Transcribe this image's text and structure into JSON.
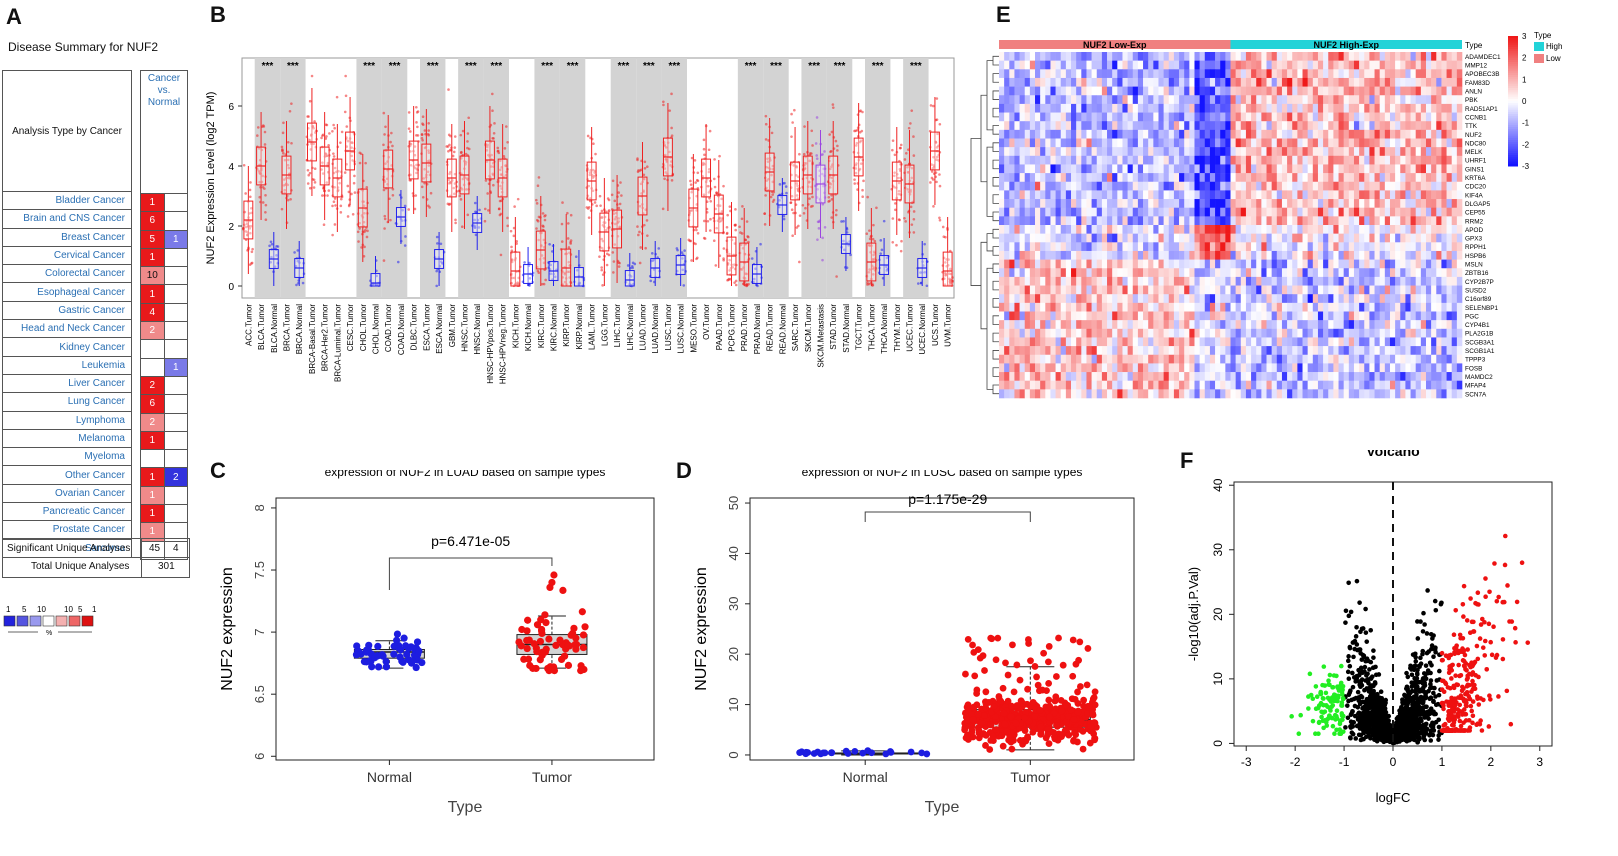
{
  "panels": {
    "A": "A",
    "B": "B",
    "C": "C",
    "D": "D",
    "E": "E",
    "F": "F"
  },
  "oncomine": {
    "title": "Disease Summary for NUF2",
    "col_analysis": "Analysis Type by Cancer",
    "col_cancer_vs_normal": [
      "Cancer",
      "vs.",
      "Normal"
    ],
    "rows": [
      {
        "name": "Bladder Cancer",
        "up": "1",
        "down": ""
      },
      {
        "name": "Brain and CNS Cancer",
        "up": "6",
        "down": ""
      },
      {
        "name": "Breast Cancer",
        "up": "5",
        "down": "1"
      },
      {
        "name": "Cervical Cancer",
        "up": "1",
        "down": ""
      },
      {
        "name": "Colorectal Cancer",
        "up": "10",
        "down": ""
      },
      {
        "name": "Esophageal Cancer",
        "up": "1",
        "down": ""
      },
      {
        "name": "Gastric Cancer",
        "up": "4",
        "down": ""
      },
      {
        "name": "Head and Neck Cancer",
        "up": "2",
        "down": ""
      },
      {
        "name": "Kidney Cancer",
        "up": "",
        "down": ""
      },
      {
        "name": "Leukemia",
        "up": "",
        "down": "1"
      },
      {
        "name": "Liver Cancer",
        "up": "2",
        "down": ""
      },
      {
        "name": "Lung Cancer",
        "up": "6",
        "down": ""
      },
      {
        "name": "Lymphoma",
        "up": "2",
        "down": ""
      },
      {
        "name": "Melanoma",
        "up": "1",
        "down": ""
      },
      {
        "name": "Myeloma",
        "up": "",
        "down": ""
      },
      {
        "name": "Other Cancer",
        "up": "1",
        "down": "2"
      },
      {
        "name": "Ovarian Cancer",
        "up": "1",
        "down": ""
      },
      {
        "name": "Pancreatic Cancer",
        "up": "1",
        "down": ""
      },
      {
        "name": "Prostate Cancer",
        "up": "1",
        "down": ""
      },
      {
        "name": "Sarcoma",
        "up": "",
        "down": ""
      }
    ],
    "significant_label": "Significant Unique Analyses",
    "significant_up": "45",
    "significant_down": "4",
    "total_label": "Total Unique Analyses",
    "total": "301",
    "legend_numbers": [
      "1",
      "5",
      "10",
      "10",
      "5",
      "1"
    ],
    "legend_pct": "%",
    "colors": {
      "up_strong": "#e8191b",
      "up_light": "#f08a8a",
      "down_strong": "#3333dd",
      "down_light": "#7a7ae8"
    }
  },
  "chart_data": [
    {
      "panel": "B",
      "type": "box",
      "ylabel": "NUF2 Expression Level (log2 TPM)",
      "yticks": [
        0,
        2,
        4,
        6
      ],
      "ylim": [
        -0.4,
        7.6
      ],
      "categories": [
        "ACC.Tumor",
        "BLCA.Tumor",
        "BLCA.Normal",
        "BRCA.Tumor",
        "BRCA.Normal",
        "BRCA-Basal.Tumor",
        "BRCA-Her2.Tumor",
        "BRCA-Luminal.Tumor",
        "CESC.Tumor",
        "CHOL.Tumor",
        "CHOL.Normal",
        "COAD.Tumor",
        "COAD.Normal",
        "DLBC.Tumor",
        "ESCA.Tumor",
        "ESCA.Normal",
        "GBM.Tumor",
        "HNSC.Tumor",
        "HNSC.Normal",
        "HNSC-HPVpos.Tumor",
        "HNSC-HPVneg.Tumor",
        "KICH.Tumor",
        "KICH.Normal",
        "KIRC.Tumor",
        "KIRC.Normal",
        "KIRP.Tumor",
        "KIRP.Normal",
        "LAML.Tumor",
        "LGG.Tumor",
        "LIHC.Tumor",
        "LIHC.Normal",
        "LUAD.Tumor",
        "LUAD.Normal",
        "LUSC.Tumor",
        "LUSC.Normal",
        "MESO.Tumor",
        "OV.Tumor",
        "PAAD.Tumor",
        "PCPG.Tumor",
        "PRAD.Tumor",
        "PRAD.Normal",
        "READ.Tumor",
        "READ.Normal",
        "SARC.Tumor",
        "SKCM.Tumor",
        "SKCM.Metastasis",
        "STAD.Tumor",
        "STAD.Normal",
        "TGCT.Tumor",
        "THCA.Tumor",
        "THCA.Normal",
        "THYM.Tumor",
        "UCEC.Tumor",
        "UCEC.Normal",
        "UCS.Tumor",
        "UVM.Tumor"
      ],
      "medians": [
        2.2,
        4.0,
        0.9,
        3.7,
        0.6,
        4.8,
        4.0,
        3.6,
        4.5,
        2.6,
        0.1,
        3.9,
        2.3,
        4.2,
        4.1,
        0.9,
        3.6,
        3.7,
        2.1,
        4.2,
        3.6,
        0.5,
        0.4,
        1.2,
        0.5,
        0.6,
        0.3,
        3.5,
        1.8,
        1.9,
        0.2,
        3.0,
        0.6,
        4.3,
        0.7,
        2.6,
        3.6,
        2.4,
        1.0,
        0.8,
        0.4,
        3.8,
        2.7,
        3.5,
        3.7,
        3.4,
        3.7,
        1.4,
        4.3,
        0.8,
        0.7,
        3.5,
        3.4,
        0.6,
        4.5,
        0.5
      ],
      "significance_label": "***",
      "significant_pairs": [
        "BLCA",
        "BRCA",
        "CHOL",
        "COAD",
        "ESCA",
        "HNSC",
        "HNSC-HPV",
        "KIRC",
        "KIRP",
        "LIHC",
        "LUAD",
        "LUSC",
        "PRAD",
        "READ",
        "SKCM",
        "STAD",
        "THCA",
        "UCEC"
      ]
    },
    {
      "panel": "C",
      "type": "box_scatter",
      "title": "expression of NUF2 in LUAD based on sample types",
      "xlabel": "Type",
      "ylabel": "NUF2 expression",
      "categories": [
        "Normal",
        "Tumor"
      ],
      "yticks": [
        6.0,
        6.5,
        7.0,
        7.5,
        8.0
      ],
      "ylim": [
        5.97,
        8.08
      ],
      "p_label": "p=6.471e-05",
      "boxes": [
        {
          "name": "Normal",
          "q1": 6.79,
          "median": 6.84,
          "q3": 6.86,
          "whisker_low": 6.71,
          "whisker_high": 6.93,
          "n": 60
        },
        {
          "name": "Tumor",
          "q1": 6.82,
          "median": 6.9,
          "q3": 6.98,
          "whisker_low": 6.71,
          "whisker_high": 7.13,
          "n": 60
        }
      ],
      "outliers": {
        "Tumor": [
          7.36,
          7.4,
          7.46
        ]
      },
      "colors": {
        "Normal": "#1d1de0",
        "Tumor": "#ee1111"
      }
    },
    {
      "panel": "D",
      "type": "box_scatter",
      "title": "expression of NUF2 in LUSC based on sample types",
      "xlabel": "Type",
      "ylabel": "NUF2 expression",
      "categories": [
        "Normal",
        "Tumor"
      ],
      "yticks": [
        0,
        10,
        20,
        30,
        40,
        50
      ],
      "ylim": [
        -1,
        51
      ],
      "p_label": "p=1.175e-29",
      "boxes": [
        {
          "name": "Normal",
          "q1": 0.2,
          "median": 0.3,
          "q3": 0.4,
          "whisker_low": 0.0,
          "whisker_high": 0.8,
          "n": 24
        },
        {
          "name": "Tumor",
          "q1": 5.5,
          "median": 7.0,
          "q3": 9.0,
          "whisker_low": 1.0,
          "whisker_high": 17.5,
          "n": 500
        }
      ],
      "colors": {
        "Normal": "#1d1de0",
        "Tumor": "#ee1111"
      }
    },
    {
      "panel": "E",
      "type": "heatmap",
      "groups": [
        {
          "name": "NUF2 Low-Exp",
          "color": "#f08080"
        },
        {
          "name": "NUF2 High-Exp",
          "color": "#22d3d8"
        }
      ],
      "type_label": "Type",
      "legend_title": "Type",
      "legend_items": [
        {
          "name": "High",
          "color": "#22d3d8"
        },
        {
          "name": "Low",
          "color": "#f08080"
        }
      ],
      "scale_ticks": [
        3,
        2,
        1,
        0,
        -1,
        -2,
        -3
      ],
      "genes": [
        "ADAMDEC1",
        "MMP12",
        "APOBEC3B",
        "FAM83D",
        "ANLN",
        "PBK",
        "RAD51AP1",
        "CCNB1",
        "TTK",
        "NUF2",
        "NDC80",
        "MELK",
        "UHRF1",
        "GINS1",
        "KRT6A",
        "CDC20",
        "KIF4A",
        "DLGAP5",
        "CEP55",
        "RRM2",
        "APOD",
        "GPX3",
        "RPPH1",
        "HSPB6",
        "MSLN",
        "ZBTB16",
        "CYP2B7P",
        "SUSD2",
        "C16orf89",
        "SELENBP1",
        "PGC",
        "CYP4B1",
        "PLA2G1B",
        "SCGB3A1",
        "SCGB1A1",
        "TPPP3",
        "FOSB",
        "MAMDC2",
        "MFAP4",
        "SCN7A"
      ]
    },
    {
      "panel": "F",
      "type": "scatter",
      "title": "Volcano",
      "xlabel": "logFC",
      "ylabel": "-log10(adj.P.Val)",
      "xticks": [
        -3,
        -2,
        -1,
        0,
        1,
        2,
        3
      ],
      "yticks": [
        0,
        10,
        20,
        30,
        40
      ],
      "xlim": [
        -3.25,
        3.25
      ],
      "ylim": [
        -0.4,
        40.5
      ],
      "thresholds": {
        "logFC": 1,
        "vertical_dashed": 0
      },
      "colors": {
        "down": "#22ee22",
        "ns": "#000000",
        "up": "#ee1111"
      }
    }
  ]
}
